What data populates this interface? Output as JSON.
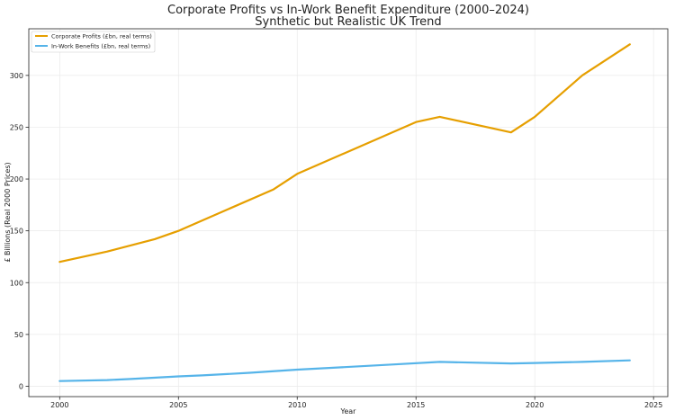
{
  "chart_data": {
    "type": "line",
    "title": "Corporate Profits vs In-Work Benefit Expenditure (2000–2024)",
    "subtitle": "Synthetic but Realistic UK Trend",
    "xlabel": "Year",
    "ylabel": "£ Billions (Real 2000 Prices)",
    "xlim": [
      1998.7,
      2025.6
    ],
    "ylim": [
      -10,
      345
    ],
    "xticks": [
      2000,
      2005,
      2010,
      2015,
      2020,
      2025
    ],
    "yticks": [
      0,
      50,
      100,
      150,
      200,
      250,
      300
    ],
    "grid": true,
    "legend_position": "top-left",
    "series": [
      {
        "name": "Corporate Profits (£bn, real terms)",
        "color": "#E69F00",
        "x": [
          2000,
          2002,
          2004,
          2005,
          2009,
          2010,
          2015,
          2016,
          2019,
          2020,
          2022,
          2024
        ],
        "values": [
          120,
          130,
          142,
          150,
          190,
          205,
          255,
          260,
          245,
          260,
          300,
          330
        ]
      },
      {
        "name": "In-Work Benefits (£bn, real terms)",
        "color": "#56B4E9",
        "x": [
          2000,
          2002,
          2003,
          2005,
          2006,
          2008,
          2010,
          2012,
          2014,
          2016,
          2019,
          2020,
          2022,
          2024
        ],
        "values": [
          5,
          6,
          7,
          9.5,
          10.5,
          13,
          16,
          18.5,
          21,
          23.5,
          22,
          22.5,
          23.5,
          25
        ]
      }
    ]
  }
}
